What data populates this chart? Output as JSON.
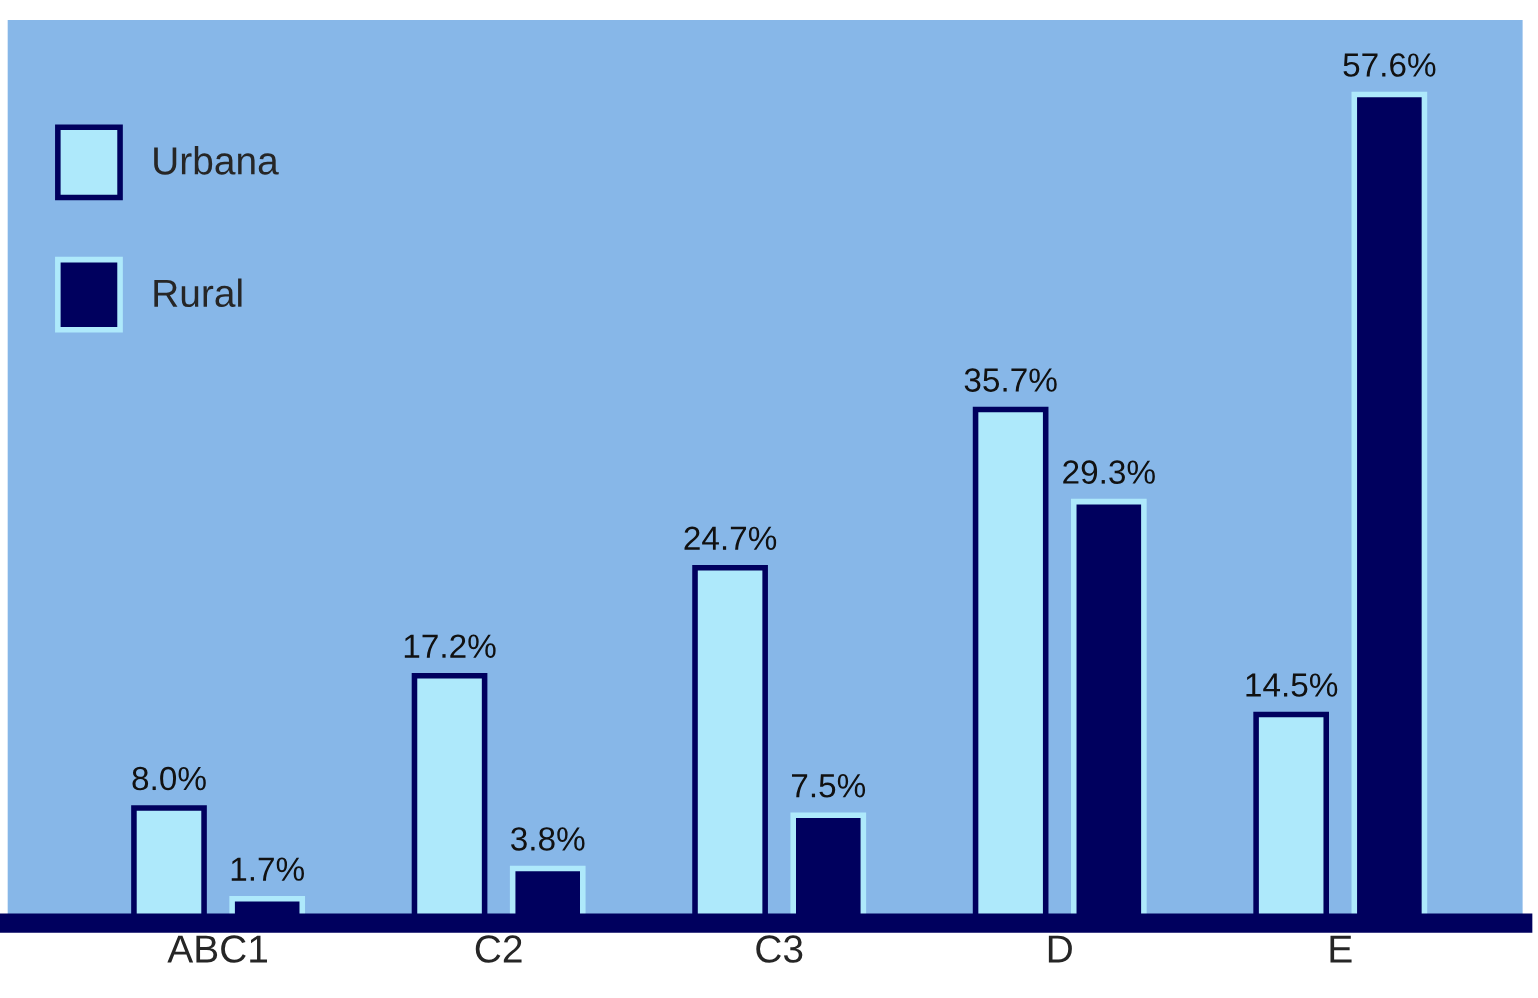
{
  "chart_data": {
    "type": "bar",
    "categories": [
      "ABC1",
      "C2",
      "C3",
      "D",
      "E"
    ],
    "series": [
      {
        "name": "Urbana",
        "color": "#aee9fb",
        "values": [
          8.0,
          17.2,
          24.7,
          35.7,
          14.5
        ],
        "value_labels": [
          "8.0%",
          "17.2%",
          "24.7%",
          "35.7%",
          "14.5%"
        ]
      },
      {
        "name": "Rural",
        "color": "#00005e",
        "values": [
          1.7,
          3.8,
          7.5,
          29.3,
          57.6
        ],
        "value_labels": [
          "1.7%",
          "3.8%",
          "7.5%",
          "29.3%",
          "57.6%"
        ]
      }
    ],
    "legend": "top left",
    "grid": false
  }
}
